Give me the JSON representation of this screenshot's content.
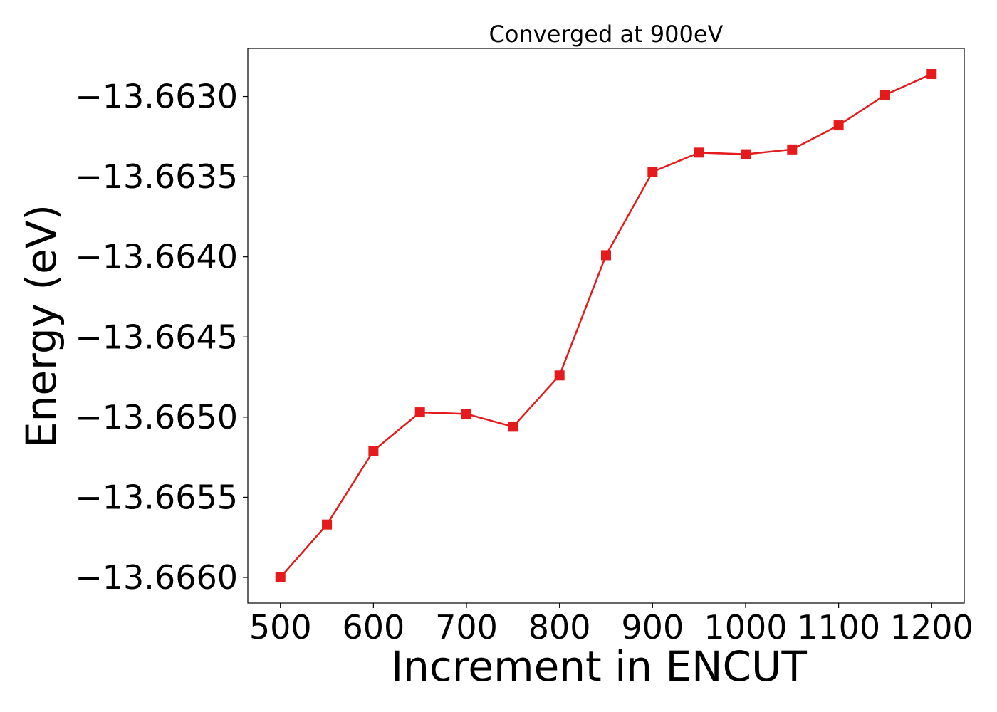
{
  "chart_data": {
    "type": "line",
    "title": "Converged at 900eV",
    "xlabel": "Increment in ENCUT",
    "ylabel": "Energy (eV)",
    "x": [
      500,
      550,
      600,
      650,
      700,
      750,
      800,
      850,
      900,
      950,
      1000,
      1050,
      1100,
      1150,
      1200
    ],
    "series": [
      {
        "values": [
          -13.666,
          -13.66567,
          -13.66521,
          -13.66497,
          -13.66498,
          -13.66506,
          -13.66474,
          -13.66399,
          -13.66347,
          -13.66335,
          -13.66336,
          -13.66333,
          -13.66318,
          -13.66299,
          -13.66286
        ],
        "color": "#e41a1c",
        "marker": "square"
      }
    ],
    "xlim": [
      465,
      1235
    ],
    "ylim": [
      -13.66616,
      -13.6627
    ],
    "xticks": [
      500,
      600,
      700,
      800,
      900,
      1000,
      1100,
      1200
    ],
    "xtick_labels": [
      "500",
      "600",
      "700",
      "800",
      "900",
      "1000",
      "1100",
      "1200"
    ],
    "yticks": [
      -13.663,
      -13.6635,
      -13.664,
      -13.6645,
      -13.665,
      -13.6655,
      -13.666
    ],
    "ytick_labels": [
      "−13.6630",
      "−13.6635",
      "−13.6640",
      "−13.6645",
      "−13.6650",
      "−13.6655",
      "−13.6660"
    ],
    "grid": false,
    "legend": "none"
  }
}
